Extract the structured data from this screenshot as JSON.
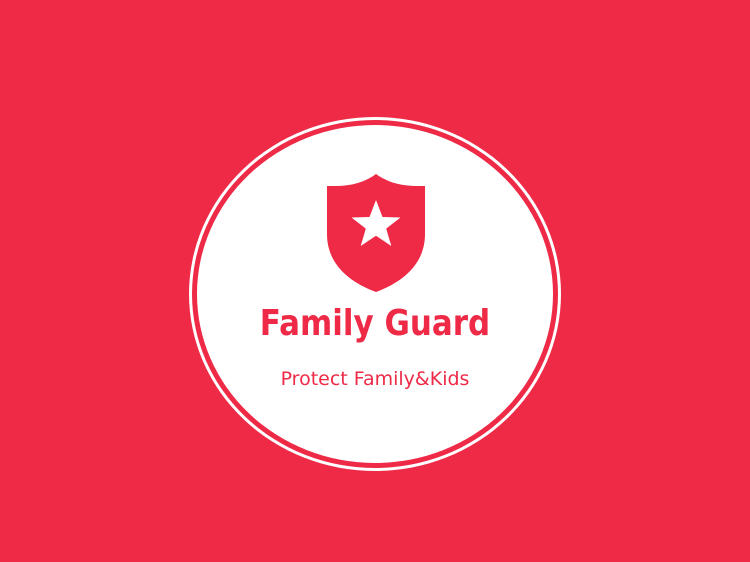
{
  "logo": {
    "name": "Family Guard",
    "tagline": "Protect Family&Kids",
    "icon": "shield-star-icon"
  },
  "colors": {
    "background": "#EE2A47",
    "circle": "#FFFFFF",
    "brand": "#EE2A47"
  }
}
